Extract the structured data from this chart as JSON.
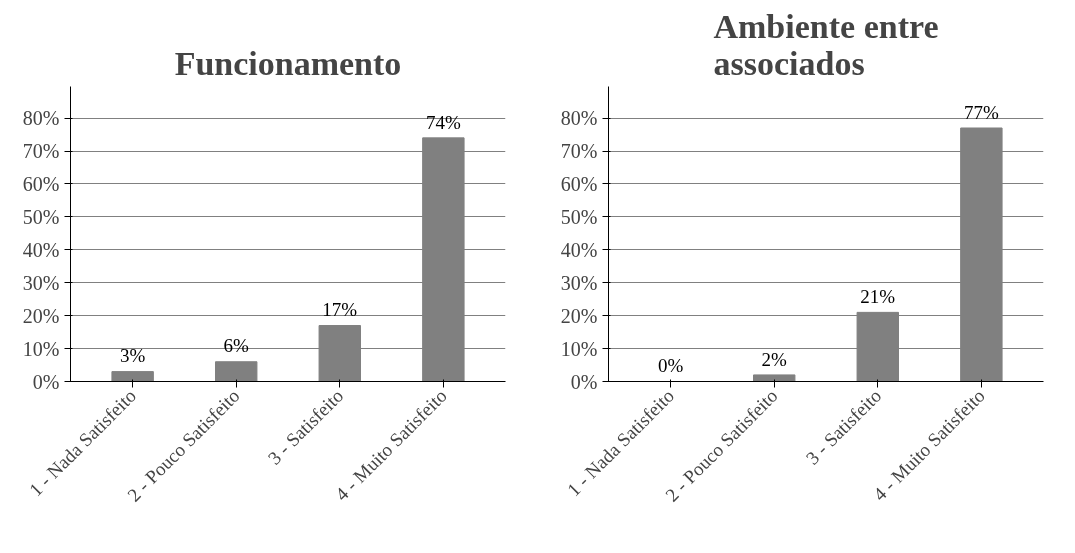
{
  "chart_data": [
    {
      "type": "bar",
      "title": "Funcionamento",
      "categories": [
        "1 - Nada Satisfeito",
        "2 - Pouco Satisfeito",
        "3 - Satisfeito",
        "4 - Muito Satisfeito"
      ],
      "values": [
        3,
        6,
        17,
        74
      ],
      "value_labels": [
        "3%",
        "6%",
        "17%",
        "74%"
      ],
      "color": "#808080",
      "ylim": [
        0,
        80
      ],
      "yticks": [
        {
          "value": 0,
          "label": "0%"
        },
        {
          "value": 10,
          "label": "10%"
        },
        {
          "value": 20,
          "label": "20%"
        },
        {
          "value": 30,
          "label": "30%"
        },
        {
          "value": 40,
          "label": "40%"
        },
        {
          "value": 50,
          "label": "50%"
        },
        {
          "value": 60,
          "label": "60%"
        },
        {
          "value": 70,
          "label": "70%"
        },
        {
          "value": 80,
          "label": "80%"
        }
      ],
      "grid": "y"
    },
    {
      "type": "bar",
      "title": "Ambiente entre associados",
      "categories": [
        "1 - Nada Satisfeito",
        "2 - Pouco Satisfeito",
        "3 - Satisfeito",
        "4 - Muito Satisfeito"
      ],
      "values": [
        0,
        2,
        21,
        77
      ],
      "value_labels": [
        "0%",
        "2%",
        "21%",
        "77%"
      ],
      "color": "#808080",
      "ylim": [
        0,
        80
      ],
      "yticks": [
        {
          "value": 0,
          "label": "0%"
        },
        {
          "value": 10,
          "label": "10%"
        },
        {
          "value": 20,
          "label": "20%"
        },
        {
          "value": 30,
          "label": "30%"
        },
        {
          "value": 40,
          "label": "40%"
        },
        {
          "value": 50,
          "label": "50%"
        },
        {
          "value": 60,
          "label": "60%"
        },
        {
          "value": 70,
          "label": "70%"
        },
        {
          "value": 80,
          "label": "80%"
        }
      ],
      "grid": "y"
    }
  ]
}
